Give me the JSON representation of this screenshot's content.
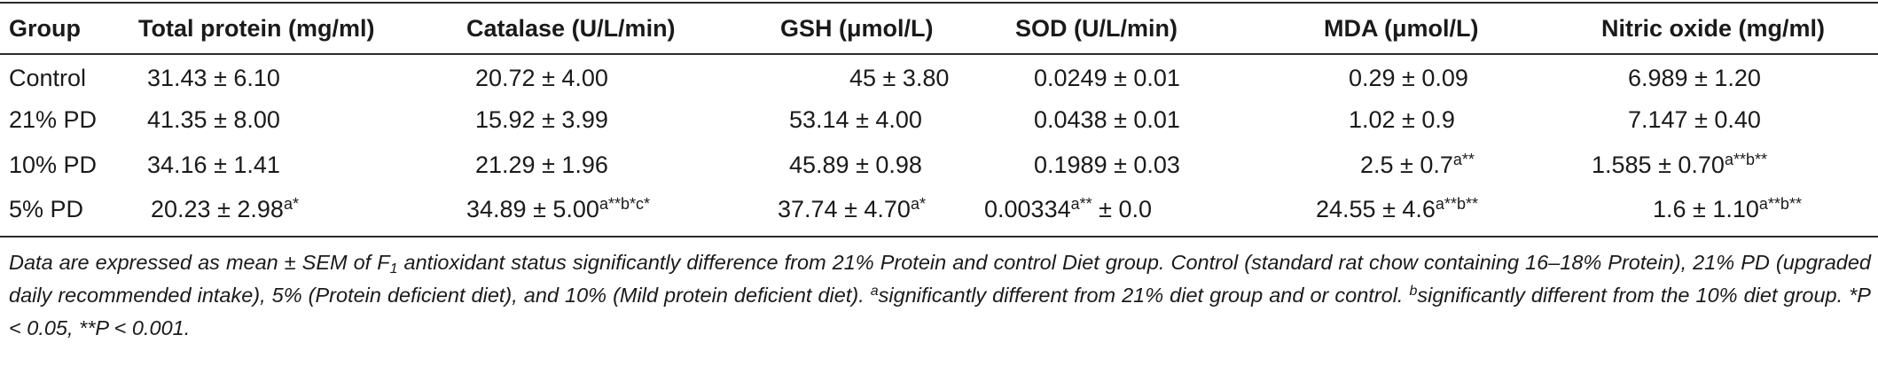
{
  "table": {
    "headers": [
      "Group",
      "Total protein (mg/ml)",
      "Catalase (U/L/min)",
      "GSH (μmol/L)",
      "SOD (U/L/min)",
      "MDA (μmol/L)",
      "Nitric oxide (mg/ml)"
    ],
    "rows": [
      {
        "group": "Control",
        "cells": [
          {
            "main": "31.43 ± 6.10",
            "sup": ""
          },
          {
            "main": "20.72 ± 4.00",
            "sup": ""
          },
          {
            "main": "45 ± 3.80",
            "sup": ""
          },
          {
            "main": "0.0249 ± 0.01",
            "sup": ""
          },
          {
            "main": "0.29 ± 0.09",
            "sup": ""
          },
          {
            "main": "6.989 ± 1.20",
            "sup": ""
          }
        ]
      },
      {
        "group": "21% PD",
        "cells": [
          {
            "main": "41.35 ± 8.00",
            "sup": ""
          },
          {
            "main": "15.92 ± 3.99",
            "sup": ""
          },
          {
            "main": "53.14 ± 4.00",
            "sup": ""
          },
          {
            "main": "0.0438 ± 0.01",
            "sup": ""
          },
          {
            "main": "1.02 ± 0.9",
            "sup": ""
          },
          {
            "main": "7.147 ± 0.40",
            "sup": ""
          }
        ]
      },
      {
        "group": "10% PD",
        "cells": [
          {
            "main": "34.16 ± 1.41",
            "sup": ""
          },
          {
            "main": "21.29 ± 1.96",
            "sup": ""
          },
          {
            "main": "45.89 ± 0.98",
            "sup": ""
          },
          {
            "main": "0.1989 ± 0.03",
            "sup": ""
          },
          {
            "main": "2.5 ± 0.7",
            "sup": "a**"
          },
          {
            "main": "1.585 ± 0.70",
            "sup": "a**b**"
          }
        ]
      },
      {
        "group": "5% PD",
        "cells": [
          {
            "main": "20.23 ± 2.98",
            "sup": "a*"
          },
          {
            "main": "34.89 ± 5.00",
            "sup": "a**b*c*"
          },
          {
            "main": "37.74 ± 4.70",
            "sup": "a*"
          },
          {
            "main": "0.00334",
            "sup": "a**",
            "after": " ± 0.0"
          },
          {
            "main": "24.55 ± 4.6",
            "sup": "a**b**"
          },
          {
            "main": "1.6 ± 1.10",
            "sup": "a**b**"
          }
        ]
      }
    ]
  },
  "footnote": {
    "line1_pre": "Data are expressed as mean ± SEM of F",
    "line1_sub": "1",
    "line1_post": " antioxidant status significantly difference from 21% Protein and control Diet group. Control (standard rat chow containing 16–18% Protein), 21% PD (upgraded daily recommended intake), 5% (Protein deficient diet), and 10% (Mild protein deficient diet). ",
    "sup_a": "a",
    "text_a": "significantly different from 21% diet group and or control. ",
    "sup_b": "b",
    "text_b": "significantly different from the 10% diet group. *P < 0.05, **P < 0.001."
  }
}
